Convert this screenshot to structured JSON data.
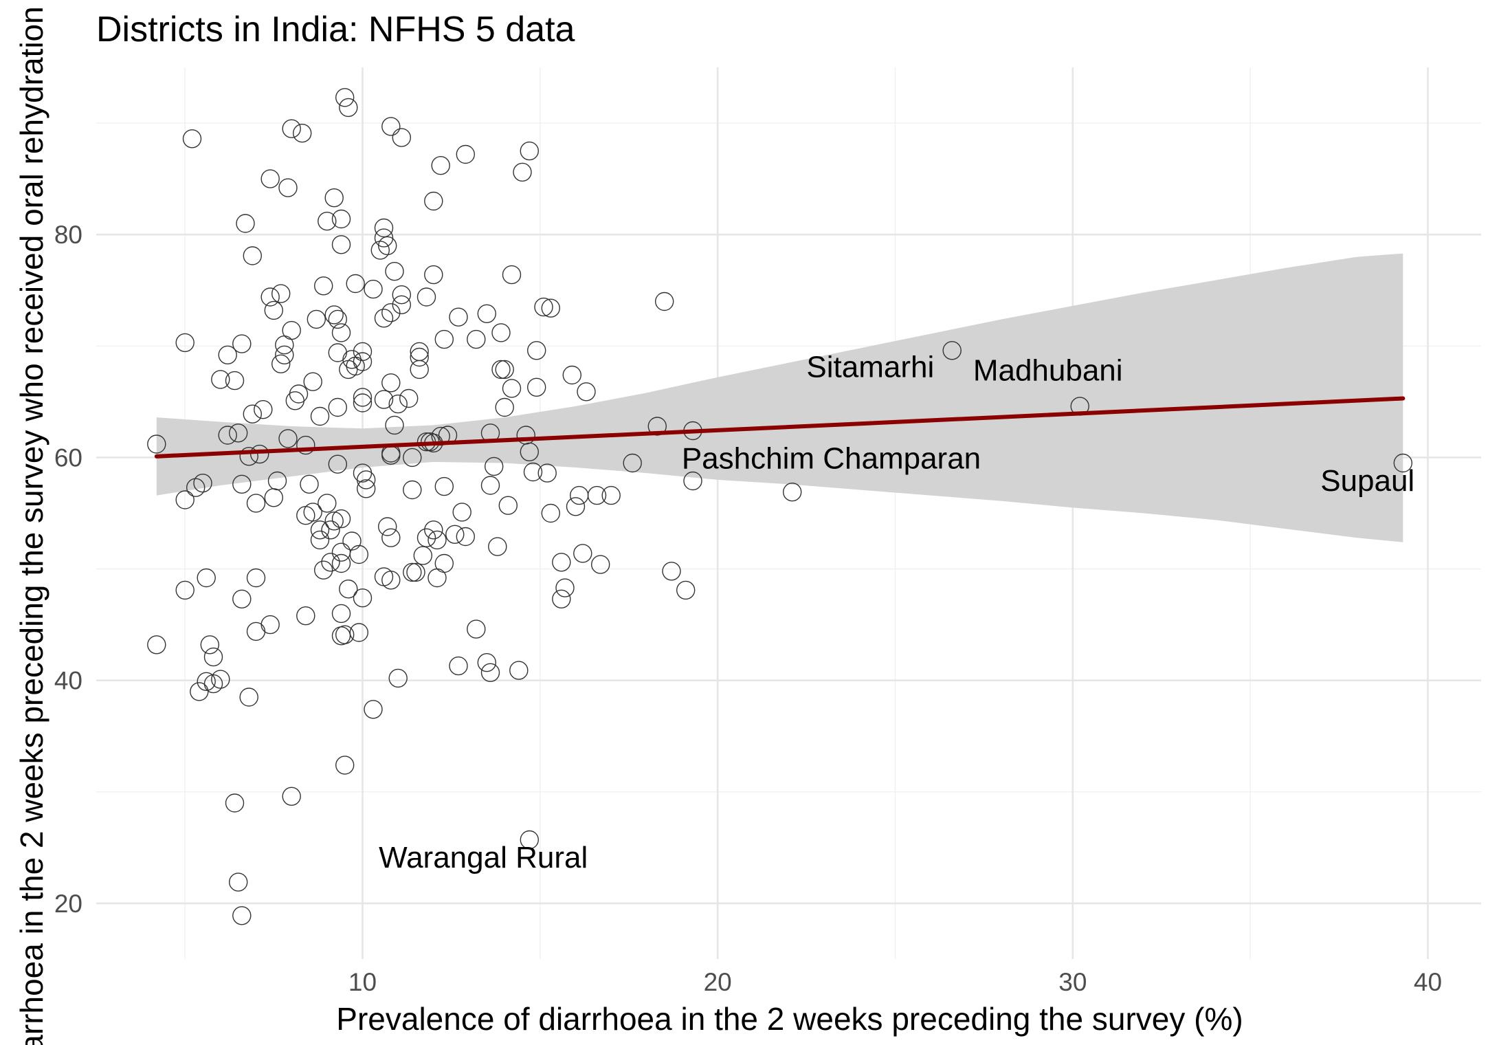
{
  "chart_data": {
    "type": "scatter",
    "title": "Districts in India: NFHS 5 data",
    "xlabel": "Prevalence of diarrhoea in the 2 weeks preceding the survey (%)",
    "ylabel": "arrhoea in the 2 weeks preceding the survey who received oral rehydration",
    "xlim": [
      2.5,
      41.5
    ],
    "ylim": [
      15,
      95
    ],
    "x_ticks": [
      10,
      20,
      30,
      40
    ],
    "x_tick_labels": [
      "10",
      "20",
      "30",
      "40"
    ],
    "y_ticks": [
      20,
      40,
      60,
      80
    ],
    "y_tick_labels": [
      "20",
      "40",
      "60",
      "80"
    ],
    "grid": true,
    "points": [
      [
        4.2,
        61.2
      ],
      [
        4.2,
        43.2
      ],
      [
        5.0,
        70.3
      ],
      [
        5.0,
        56.2
      ],
      [
        5.0,
        48.1
      ],
      [
        5.2,
        88.6
      ],
      [
        5.3,
        57.3
      ],
      [
        5.4,
        39.0
      ],
      [
        5.5,
        57.7
      ],
      [
        5.6,
        49.2
      ],
      [
        5.7,
        43.2
      ],
      [
        5.8,
        42.1
      ],
      [
        5.8,
        39.7
      ],
      [
        5.6,
        39.9
      ],
      [
        6.0,
        40.1
      ],
      [
        6.0,
        67.0
      ],
      [
        6.2,
        62.0
      ],
      [
        6.2,
        69.2
      ],
      [
        6.4,
        66.9
      ],
      [
        6.5,
        62.2
      ],
      [
        6.6,
        70.2
      ],
      [
        6.6,
        57.6
      ],
      [
        6.6,
        47.3
      ],
      [
        6.7,
        81.0
      ],
      [
        6.8,
        60.1
      ],
      [
        6.8,
        38.5
      ],
      [
        6.9,
        78.1
      ],
      [
        6.9,
        63.9
      ],
      [
        7.0,
        55.9
      ],
      [
        7.0,
        49.2
      ],
      [
        7.0,
        44.4
      ],
      [
        7.1,
        60.3
      ],
      [
        7.2,
        64.3
      ],
      [
        6.4,
        29.0
      ],
      [
        6.5,
        21.9
      ],
      [
        6.6,
        18.9
      ],
      [
        7.4,
        85.0
      ],
      [
        7.4,
        74.4
      ],
      [
        7.4,
        45.0
      ],
      [
        7.5,
        73.2
      ],
      [
        7.5,
        56.4
      ],
      [
        7.6,
        57.9
      ],
      [
        7.7,
        68.4
      ],
      [
        7.7,
        74.7
      ],
      [
        7.8,
        70.1
      ],
      [
        7.8,
        69.2
      ],
      [
        7.9,
        61.7
      ],
      [
        7.9,
        84.2
      ],
      [
        8.0,
        71.4
      ],
      [
        8.0,
        89.5
      ],
      [
        8.1,
        65.1
      ],
      [
        8.0,
        29.6
      ],
      [
        8.2,
        65.7
      ],
      [
        8.3,
        89.1
      ],
      [
        8.4,
        54.8
      ],
      [
        8.4,
        45.8
      ],
      [
        8.4,
        61.1
      ],
      [
        8.5,
        57.6
      ],
      [
        8.6,
        55.1
      ],
      [
        8.6,
        66.8
      ],
      [
        8.7,
        72.4
      ],
      [
        8.8,
        63.7
      ],
      [
        8.8,
        53.5
      ],
      [
        8.8,
        52.6
      ],
      [
        8.9,
        75.4
      ],
      [
        8.9,
        49.9
      ],
      [
        9.0,
        81.2
      ],
      [
        9.0,
        55.9
      ],
      [
        9.1,
        50.6
      ],
      [
        9.1,
        53.5
      ],
      [
        9.2,
        72.8
      ],
      [
        9.2,
        83.3
      ],
      [
        9.2,
        54.3
      ],
      [
        9.3,
        64.5
      ],
      [
        9.3,
        59.4
      ],
      [
        9.3,
        69.4
      ],
      [
        9.3,
        72.4
      ],
      [
        9.4,
        81.4
      ],
      [
        9.4,
        79.1
      ],
      [
        9.4,
        71.2
      ],
      [
        9.4,
        54.5
      ],
      [
        9.4,
        51.5
      ],
      [
        9.4,
        50.5
      ],
      [
        9.4,
        46.0
      ],
      [
        9.4,
        44.0
      ],
      [
        9.5,
        44.1
      ],
      [
        9.5,
        32.4
      ],
      [
        9.5,
        92.3
      ],
      [
        9.6,
        91.4
      ],
      [
        9.6,
        48.2
      ],
      [
        9.6,
        67.9
      ],
      [
        9.7,
        68.8
      ],
      [
        9.7,
        52.5
      ],
      [
        9.8,
        75.6
      ],
      [
        9.8,
        68.2
      ],
      [
        9.9,
        51.3
      ],
      [
        9.9,
        44.3
      ],
      [
        10.0,
        47.4
      ],
      [
        10.0,
        65.4
      ],
      [
        10.0,
        64.9
      ],
      [
        10.0,
        58.6
      ],
      [
        10.0,
        68.6
      ],
      [
        10.0,
        69.5
      ],
      [
        10.1,
        57.2
      ],
      [
        10.1,
        58.0
      ],
      [
        10.3,
        75.1
      ],
      [
        10.3,
        37.4
      ],
      [
        10.5,
        78.6
      ],
      [
        10.6,
        65.2
      ],
      [
        10.6,
        72.5
      ],
      [
        10.6,
        80.6
      ],
      [
        10.6,
        79.7
      ],
      [
        10.6,
        49.3
      ],
      [
        10.7,
        79.0
      ],
      [
        10.7,
        53.8
      ],
      [
        10.8,
        66.7
      ],
      [
        10.8,
        73.0
      ],
      [
        10.8,
        60.2
      ],
      [
        10.8,
        60.4
      ],
      [
        10.8,
        52.8
      ],
      [
        10.8,
        49.0
      ],
      [
        10.8,
        89.7
      ],
      [
        10.9,
        76.7
      ],
      [
        10.9,
        62.9
      ],
      [
        11.0,
        64.8
      ],
      [
        11.0,
        40.2
      ],
      [
        11.1,
        74.6
      ],
      [
        11.1,
        73.7
      ],
      [
        11.1,
        88.7
      ],
      [
        11.3,
        65.3
      ],
      [
        11.4,
        60.0
      ],
      [
        11.4,
        57.1
      ],
      [
        11.4,
        49.7
      ],
      [
        11.5,
        49.7
      ],
      [
        11.6,
        69.5
      ],
      [
        11.6,
        69.0
      ],
      [
        11.6,
        67.9
      ],
      [
        11.7,
        51.2
      ],
      [
        11.8,
        52.8
      ],
      [
        11.8,
        74.4
      ],
      [
        11.8,
        61.4
      ],
      [
        11.9,
        61.4
      ],
      [
        12.0,
        76.4
      ],
      [
        12.0,
        83.0
      ],
      [
        12.0,
        53.5
      ],
      [
        12.0,
        61.3
      ],
      [
        12.1,
        52.6
      ],
      [
        12.1,
        49.2
      ],
      [
        12.2,
        61.9
      ],
      [
        12.2,
        86.2
      ],
      [
        12.3,
        70.6
      ],
      [
        12.3,
        57.4
      ],
      [
        12.3,
        50.5
      ],
      [
        12.4,
        62.0
      ],
      [
        12.6,
        53.1
      ],
      [
        12.7,
        72.6
      ],
      [
        12.7,
        41.3
      ],
      [
        12.8,
        55.1
      ],
      [
        12.9,
        87.2
      ],
      [
        12.9,
        52.9
      ],
      [
        13.2,
        70.6
      ],
      [
        13.2,
        44.6
      ],
      [
        13.5,
        72.9
      ],
      [
        13.5,
        41.6
      ],
      [
        13.6,
        62.2
      ],
      [
        13.6,
        57.5
      ],
      [
        13.6,
        40.7
      ],
      [
        13.7,
        59.2
      ],
      [
        13.8,
        52.0
      ],
      [
        13.9,
        71.2
      ],
      [
        13.9,
        67.9
      ],
      [
        14.0,
        67.9
      ],
      [
        14.0,
        64.5
      ],
      [
        14.1,
        55.7
      ],
      [
        14.2,
        76.4
      ],
      [
        14.2,
        66.2
      ],
      [
        14.4,
        40.9
      ],
      [
        14.5,
        85.6
      ],
      [
        14.6,
        62.0
      ],
      [
        14.7,
        87.5
      ],
      [
        14.7,
        60.5
      ],
      [
        14.7,
        25.7
      ],
      [
        14.8,
        58.7
      ],
      [
        14.9,
        66.3
      ],
      [
        14.9,
        69.6
      ],
      [
        15.1,
        73.5
      ],
      [
        15.2,
        58.6
      ],
      [
        15.3,
        73.4
      ],
      [
        15.3,
        55.0
      ],
      [
        15.6,
        50.6
      ],
      [
        15.6,
        47.3
      ],
      [
        15.7,
        48.3
      ],
      [
        15.9,
        67.4
      ],
      [
        16.0,
        55.6
      ],
      [
        16.1,
        56.6
      ],
      [
        16.2,
        51.4
      ],
      [
        16.3,
        65.9
      ],
      [
        16.6,
        56.6
      ],
      [
        16.7,
        50.4
      ],
      [
        17.0,
        56.6
      ],
      [
        17.6,
        59.5
      ],
      [
        18.3,
        62.8
      ],
      [
        18.5,
        74.0
      ],
      [
        18.7,
        49.8
      ],
      [
        19.1,
        48.1
      ],
      [
        19.3,
        57.9
      ],
      [
        19.3,
        62.4
      ],
      [
        22.1,
        56.9
      ],
      [
        26.6,
        69.6
      ],
      [
        30.2,
        64.6
      ],
      [
        39.3,
        59.5
      ]
    ],
    "annotations": [
      {
        "text": "Sitamarhi",
        "x": 24.3,
        "y": 67.2
      },
      {
        "text": "Madhubani",
        "x": 29.3,
        "y": 66.9
      },
      {
        "text": "Pashchim Champaran",
        "x": 23.2,
        "y": 59.0
      },
      {
        "text": "Supaul",
        "x": 38.3,
        "y": 57.0
      },
      {
        "text": "Warangal Rural",
        "x": 13.4,
        "y": 23.2
      }
    ],
    "trend_line": {
      "x": [
        4.2,
        39.3
      ],
      "y": [
        60.1,
        65.3
      ],
      "color": "#8b0000"
    },
    "confidence_band": {
      "x": [
        4.2,
        6,
        8,
        10,
        12,
        14,
        16,
        18,
        20,
        22,
        24,
        26,
        28,
        30,
        32,
        34,
        36,
        38,
        39.3
      ],
      "upper": [
        63.6,
        63.2,
        62.8,
        62.6,
        62.9,
        63.6,
        64.6,
        65.8,
        67.2,
        68.5,
        69.8,
        71.1,
        72.4,
        73.6,
        74.8,
        75.9,
        77.0,
        78.0,
        78.3
      ],
      "lower": [
        56.6,
        57.5,
        58.3,
        59.1,
        59.6,
        59.5,
        59.1,
        58.6,
        58.0,
        57.6,
        57.1,
        56.6,
        56.1,
        55.5,
        55.0,
        54.4,
        53.6,
        52.8,
        52.4
      ],
      "color": "#d3d3d3"
    }
  }
}
